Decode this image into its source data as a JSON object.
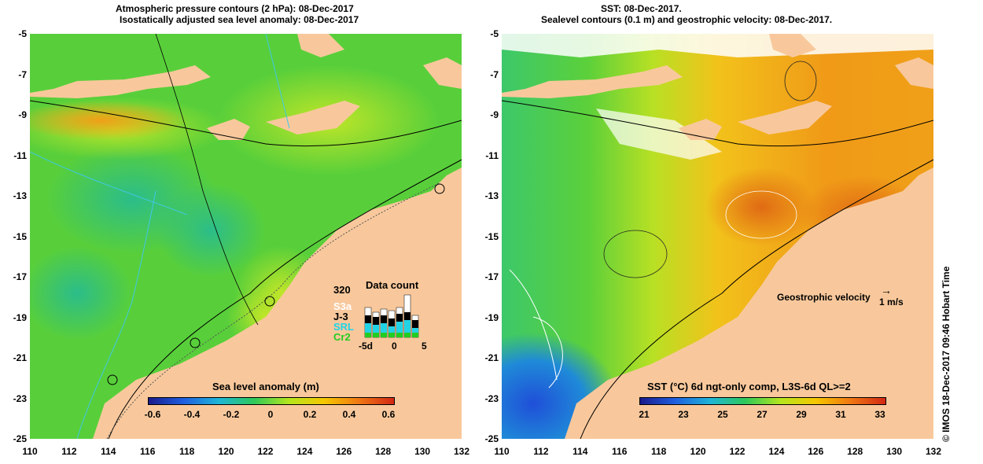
{
  "left_map": {
    "title_line1": "Atmospheric pressure contours (2 hPa): 08-Dec-2017",
    "title_line2": "Isostatically adjusted sea level anomaly: 08-Dec-2017",
    "colorbar": {
      "title": "Sea level anomaly (m)",
      "ticks": [
        "-0.6",
        "-0.4",
        "-0.2",
        "0",
        "0.2",
        "0.4",
        "0.6"
      ],
      "colors": [
        "#1a1a8c",
        "#1f5fe0",
        "#1fb5d8",
        "#2ec85a",
        "#b4e61e",
        "#f5c800",
        "#f07814",
        "#d22814"
      ]
    },
    "data_count": {
      "title": "Data count",
      "max_label": "320",
      "satellites": [
        {
          "name": "S3a",
          "color": "#ffffff"
        },
        {
          "name": "J-3",
          "color": "#000000"
        },
        {
          "name": "SRL",
          "color": "#22d3e6"
        },
        {
          "name": "Cr2",
          "color": "#22cc22"
        }
      ],
      "x_ticks": [
        "-5d",
        "0",
        "5"
      ]
    }
  },
  "right_map": {
    "title_line1": "SST: 08-Dec-2017.",
    "title_line2": "Sealevel contours (0.1 m) and geostrophic velocity: 08-Dec-2017.",
    "velocity_label": "Geostrophic velocity",
    "velocity_scale": "1 m/s",
    "colorbar": {
      "title": "SST (°C) 6d ngt-only comp, L3S-6d QL>=2",
      "ticks": [
        "21",
        "23",
        "25",
        "27",
        "29",
        "31",
        "33"
      ],
      "colors": [
        "#1a1a8c",
        "#1f5fe0",
        "#1fb5d8",
        "#2ec85a",
        "#b4e61e",
        "#f5c800",
        "#f07814",
        "#d22814"
      ]
    }
  },
  "axes": {
    "lat_labels": [
      "-5",
      "-7",
      "-9",
      "-11",
      "-13",
      "-15",
      "-17",
      "-19",
      "-21",
      "-23",
      "-25"
    ],
    "lon_labels": [
      "110",
      "112",
      "114",
      "116",
      "118",
      "120",
      "122",
      "124",
      "126",
      "128",
      "130",
      "132"
    ],
    "lat_range": [
      -25,
      -5
    ],
    "lon_range": [
      110,
      132
    ]
  },
  "footer": "© IMOS 18-Dec-2017 09:46 Hobart Time",
  "colors": {
    "land": "#f8c89c",
    "ocean_green": "#4ccd3c",
    "ocean_yellow": "#c8e628",
    "ocean_orange": "#f29a18"
  }
}
